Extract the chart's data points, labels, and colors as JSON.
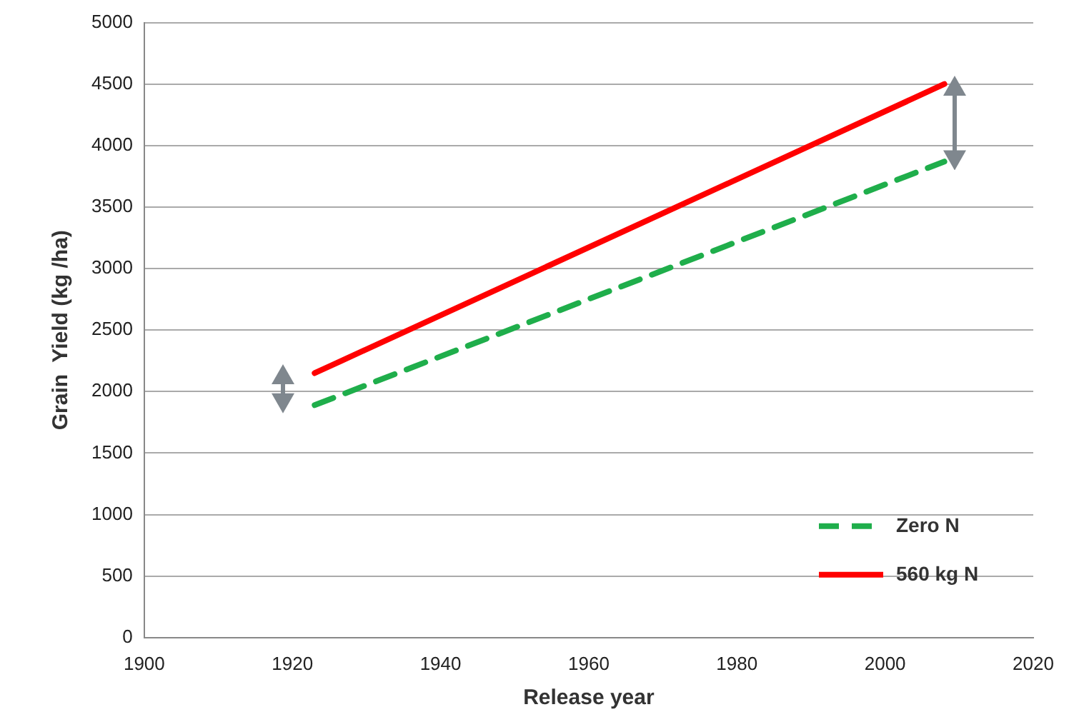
{
  "chart_data": {
    "type": "line",
    "xlabel": "Release year",
    "ylabel": "Grain  Yield (kg /ha)",
    "xlim": [
      1900,
      2020
    ],
    "xticks": [
      1900,
      1920,
      1940,
      1960,
      1980,
      2000,
      2020
    ],
    "ylim": [
      0,
      5000
    ],
    "yticks": [
      0,
      500,
      1000,
      1500,
      2000,
      2500,
      3000,
      3500,
      4000,
      4500,
      5000
    ],
    "grid": "y",
    "legend": "bottom right",
    "marker": "none",
    "x": [
      1923,
      2008
    ],
    "series": [
      {
        "name": "Zero N",
        "color": "#1fae4b",
        "line_style": "dashed",
        "values": [
          1890,
          3870
        ]
      },
      {
        "name": "560 kg N",
        "color": "#ff0000",
        "line_style": "solid",
        "values": [
          2150,
          4500
        ]
      }
    ]
  }
}
